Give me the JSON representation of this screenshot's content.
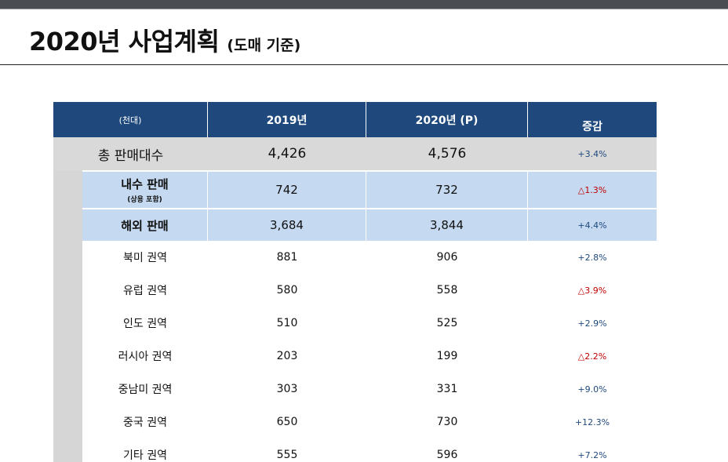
{
  "title": {
    "main": "2020년 사업계획",
    "sub": "(도매 기준)"
  },
  "colors": {
    "header_bg": "#1f497d",
    "total_bg": "#d9d9d9",
    "sub_bg": "#c5d9f1",
    "increase": "#1f497d",
    "decrease": "#c00000"
  },
  "table": {
    "header": {
      "unit": "(천대)",
      "col_2019": "2019년",
      "col_2020": "2020년 (P)",
      "col_change": "증감"
    },
    "total": {
      "label": "총 판매대수",
      "v2019": "4,426",
      "v2020": "4,576",
      "change": "+3.4%"
    },
    "domestic": {
      "label": "내수 판매",
      "note": "(상용 포함)",
      "v2019": "742",
      "v2020": "732",
      "change": "△1.3%"
    },
    "overseas": {
      "label": "해외 판매",
      "v2019": "3,684",
      "v2020": "3,844",
      "change": "+4.4%"
    },
    "regions": [
      {
        "label": "북미 권역",
        "v2019": "881",
        "v2020": "906",
        "change": "+2.8%"
      },
      {
        "label": "유럽 권역",
        "v2019": "580",
        "v2020": "558",
        "change": "△3.9%"
      },
      {
        "label": "인도 권역",
        "v2019": "510",
        "v2020": "525",
        "change": "+2.9%"
      },
      {
        "label": "러시아 권역",
        "v2019": "203",
        "v2020": "199",
        "change": "△2.2%"
      },
      {
        "label": "중남미 권역",
        "v2019": "303",
        "v2020": "331",
        "change": "+9.0%"
      },
      {
        "label": "중국 권역",
        "v2019": "650",
        "v2020": "730",
        "change": "+12.3%"
      },
      {
        "label": "기타 권역",
        "v2019": "555",
        "v2020": "596",
        "change": "+7.2%"
      }
    ]
  }
}
